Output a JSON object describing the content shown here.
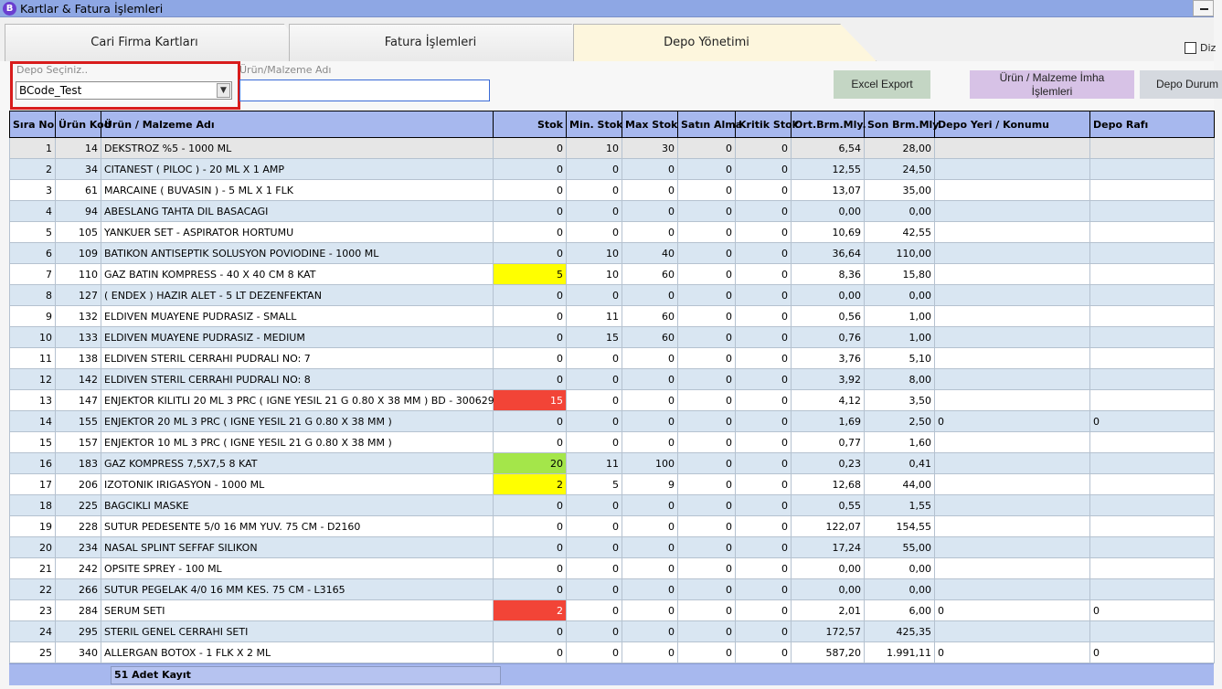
{
  "window": {
    "title": "Kartlar & Fatura İşlemleri",
    "app_icon_letter": "B"
  },
  "tabs": [
    "Cari Firma Kartları",
    "Fatura İşlemleri",
    "Depo Yönetimi"
  ],
  "checkbox_label": "Diz",
  "filter": {
    "depo_label": "Depo Seçiniz..",
    "depo_value": "BCode_Test",
    "urun_label": "Ürün/Malzeme Adı",
    "urun_value": ""
  },
  "buttons": {
    "excel": "Excel Export",
    "imha_line1": "Ürün / Malzeme İmha",
    "imha_line2": "İşlemleri",
    "durum": "Depo Durum"
  },
  "columns": [
    "Sıra No",
    "Ürün Kod",
    "Ürün / Malzeme Adı",
    "Stok",
    "Min. Stok",
    "Max Stok",
    "Satın Alma",
    "Kritik Stok",
    "Ort.Brm.Mly.",
    "Son Brm.Mly.",
    "Depo Yeri / Konumu",
    "Depo Rafı"
  ],
  "rows": [
    [
      "1",
      "14",
      "DEKSTROZ %5 - 1000 ML",
      "0",
      "10",
      "30",
      "0",
      "0",
      "6,54",
      "28,00",
      "",
      ""
    ],
    [
      "2",
      "34",
      "CITANEST ( PILOC ) - 20 ML X 1 AMP",
      "0",
      "0",
      "0",
      "0",
      "0",
      "12,55",
      "24,50",
      "",
      ""
    ],
    [
      "3",
      "61",
      "MARCAINE ( BUVASIN ) - 5 ML X 1 FLK",
      "0",
      "0",
      "0",
      "0",
      "0",
      "13,07",
      "35,00",
      "",
      ""
    ],
    [
      "4",
      "94",
      "ABESLANG TAHTA DIL BASACAGI",
      "0",
      "0",
      "0",
      "0",
      "0",
      "0,00",
      "0,00",
      "",
      ""
    ],
    [
      "5",
      "105",
      "YANKUER SET - ASPIRATOR HORTUMU",
      "0",
      "0",
      "0",
      "0",
      "0",
      "10,69",
      "42,55",
      "",
      ""
    ],
    [
      "6",
      "109",
      "BATIKON ANTISEPTIK SOLUSYON POVIODINE - 1000 ML",
      "0",
      "10",
      "40",
      "0",
      "0",
      "36,64",
      "110,00",
      "",
      ""
    ],
    [
      "7",
      "110",
      "GAZ BATIN KOMPRESS - 40 X 40 CM 8 KAT",
      "5",
      "10",
      "60",
      "0",
      "0",
      "8,36",
      "15,80",
      "",
      ""
    ],
    [
      "8",
      "127",
      "( ENDEX ) HAZIR ALET - 5 LT DEZENFEKTAN",
      "0",
      "0",
      "0",
      "0",
      "0",
      "0,00",
      "0,00",
      "",
      ""
    ],
    [
      "9",
      "132",
      "ELDIVEN MUAYENE PUDRASIZ - SMALL",
      "0",
      "11",
      "60",
      "0",
      "0",
      "0,56",
      "1,00",
      "",
      ""
    ],
    [
      "10",
      "133",
      "ELDIVEN MUAYENE PUDRASIZ - MEDIUM",
      "0",
      "15",
      "60",
      "0",
      "0",
      "0,76",
      "1,00",
      "",
      ""
    ],
    [
      "11",
      "138",
      "ELDIVEN STERIL CERRAHI PUDRALI NO: 7",
      "0",
      "0",
      "0",
      "0",
      "0",
      "3,76",
      "5,10",
      "",
      ""
    ],
    [
      "12",
      "142",
      "ELDIVEN STERIL CERRAHI PUDRALI NO: 8",
      "0",
      "0",
      "0",
      "0",
      "0",
      "3,92",
      "8,00",
      "",
      ""
    ],
    [
      "13",
      "147",
      "ENJEKTOR KILITLI 20 ML 3 PRC ( IGNE YESIL 21 G 0.80 X 38 MM ) BD - 300629",
      "15",
      "0",
      "0",
      "0",
      "0",
      "4,12",
      "3,50",
      "",
      ""
    ],
    [
      "14",
      "155",
      "ENJEKTOR 20 ML 3 PRC ( IGNE YESIL 21 G 0.80 X 38 MM )",
      "0",
      "0",
      "0",
      "0",
      "0",
      "1,69",
      "2,50",
      "0",
      "0"
    ],
    [
      "15",
      "157",
      "ENJEKTOR 10 ML 3 PRC ( IGNE YESIL 21 G 0.80 X 38 MM )",
      "0",
      "0",
      "0",
      "0",
      "0",
      "0,77",
      "1,60",
      "",
      ""
    ],
    [
      "16",
      "183",
      "GAZ KOMPRESS 7,5X7,5 8 KAT",
      "20",
      "11",
      "100",
      "0",
      "0",
      "0,23",
      "0,41",
      "",
      ""
    ],
    [
      "17",
      "206",
      "IZOTONIK IRIGASYON - 1000 ML",
      "2",
      "5",
      "9",
      "0",
      "0",
      "12,68",
      "44,00",
      "",
      ""
    ],
    [
      "18",
      "225",
      "BAGCIKLI MASKE",
      "0",
      "0",
      "0",
      "0",
      "0",
      "0,55",
      "1,55",
      "",
      ""
    ],
    [
      "19",
      "228",
      "SUTUR PEDESENTE 5/0 16 MM YUV. 75 CM - D2160",
      "0",
      "0",
      "0",
      "0",
      "0",
      "122,07",
      "154,55",
      "",
      ""
    ],
    [
      "20",
      "234",
      "NASAL SPLINT SEFFAF SILIKON",
      "0",
      "0",
      "0",
      "0",
      "0",
      "17,24",
      "55,00",
      "",
      ""
    ],
    [
      "21",
      "242",
      "OPSITE SPREY - 100 ML",
      "0",
      "0",
      "0",
      "0",
      "0",
      "0,00",
      "0,00",
      "",
      ""
    ],
    [
      "22",
      "266",
      "SUTUR PEGELAK 4/0 16 MM KES. 75 CM - L3165",
      "0",
      "0",
      "0",
      "0",
      "0",
      "0,00",
      "0,00",
      "",
      ""
    ],
    [
      "23",
      "284",
      "SERUM SETI",
      "2",
      "0",
      "0",
      "0",
      "0",
      "2,01",
      "6,00",
      "0",
      "0"
    ],
    [
      "24",
      "295",
      "STERIL GENEL CERRAHI SETI",
      "0",
      "0",
      "0",
      "0",
      "0",
      "172,57",
      "425,35",
      "",
      ""
    ],
    [
      "25",
      "340",
      "ALLERGAN BOTOX - 1 FLK X 2 ML",
      "0",
      "0",
      "0",
      "0",
      "0",
      "587,20",
      "1.991,11",
      "0",
      "0"
    ]
  ],
  "stock_highlight": {
    "6": "yellow",
    "12": "red",
    "15": "green",
    "16": "yellow",
    "22": "red"
  },
  "colors": {
    "yellow": "#ffff00",
    "red": "#f24437",
    "green": "#a4e64a",
    "header": "#a7b8ee"
  },
  "footer": {
    "record_count": "51 Adet Kayıt"
  }
}
